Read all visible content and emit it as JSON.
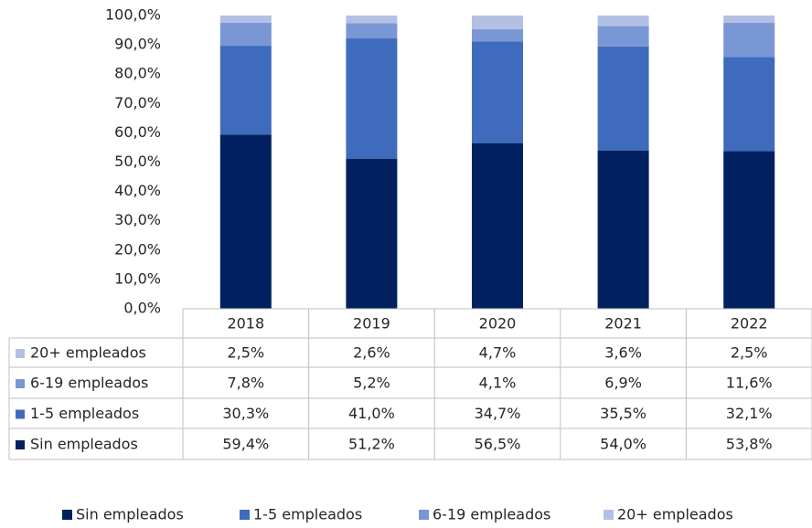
{
  "chart_data": {
    "type": "bar",
    "stacked": true,
    "categories": [
      "2018",
      "2019",
      "2020",
      "2021",
      "2022"
    ],
    "series": [
      {
        "name": "Sin empleados",
        "color": "#002060",
        "values": [
          59.4,
          51.2,
          56.5,
          54.0,
          53.8
        ],
        "value_labels": [
          "59,4%",
          "51,2%",
          "56,5%",
          "54,0%",
          "53,8%"
        ]
      },
      {
        "name": "1-5 empleados",
        "color": "#3f6bbd",
        "values": [
          30.3,
          41.0,
          34.7,
          35.5,
          32.1
        ],
        "value_labels": [
          "30,3%",
          "41,0%",
          "34,7%",
          "35,5%",
          "32,1%"
        ]
      },
      {
        "name": "6-19 empleados",
        "color": "#7a97d5",
        "values": [
          7.8,
          5.2,
          4.1,
          6.9,
          11.6
        ],
        "value_labels": [
          "7,8%",
          "5,2%",
          "4,1%",
          "6,9%",
          "11,6%"
        ]
      },
      {
        "name": "20+ empleados",
        "color": "#b3c0e3",
        "values": [
          2.5,
          2.6,
          4.7,
          3.6,
          2.5
        ],
        "value_labels": [
          "2,5%",
          "2,6%",
          "4,7%",
          "3,6%",
          "2,5%"
        ]
      }
    ],
    "ylim": [
      0,
      100
    ],
    "yticks": [
      {
        "value": 0,
        "label": "0,0%"
      },
      {
        "value": 10,
        "label": "10,0%"
      },
      {
        "value": 20,
        "label": "20,0%"
      },
      {
        "value": 30,
        "label": "30,0%"
      },
      {
        "value": 40,
        "label": "40,0%"
      },
      {
        "value": 50,
        "label": "50,0%"
      },
      {
        "value": 60,
        "label": "60,0%"
      },
      {
        "value": 70,
        "label": "70,0%"
      },
      {
        "value": 80,
        "label": "80,0%"
      },
      {
        "value": 90,
        "label": "90,0%"
      },
      {
        "value": 100,
        "label": "100,0%"
      }
    ],
    "legend": "bottom"
  }
}
